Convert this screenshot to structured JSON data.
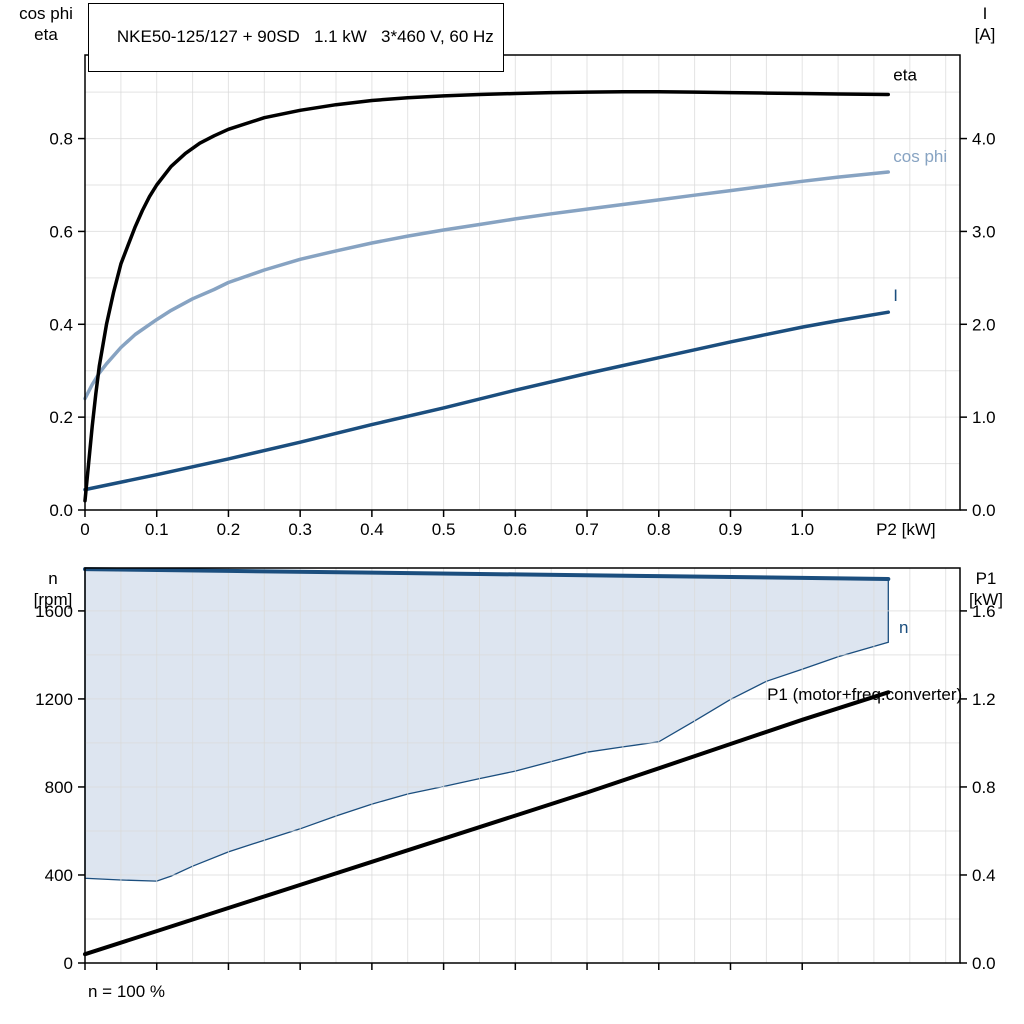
{
  "header": {
    "title": "NKE50-125/127 + 90SD   1.1 kW   3*460 V, 60 Hz"
  },
  "footer": {
    "note": "n = 100 %"
  },
  "colors": {
    "eta": "#000000",
    "cos_phi": "#87a3c2",
    "current": "#1b4e7e",
    "speed": "#1b4e7e",
    "p1": "#000000",
    "area_fill": "#d9e2ee",
    "grid": "#d9d9d9",
    "frame": "#000000",
    "text": "#000000"
  },
  "chart_data": [
    {
      "type": "line",
      "title": "Motor efficiency, power factor and current vs shaft power",
      "x_axis": {
        "min": 0,
        "max": 1.22,
        "minor_step": 0.05,
        "major_ticks": [
          0,
          0.1,
          0.2,
          0.3,
          0.4,
          0.5,
          0.6,
          0.7,
          0.8,
          0.9,
          1.0
        ],
        "tick_labels": [
          "0",
          "0.1",
          "0.2",
          "0.3",
          "0.4",
          "0.5",
          "0.6",
          "0.7",
          "0.8",
          "0.9",
          "1.0"
        ],
        "show_tick_labels": true,
        "end_label": "P2 [kW]",
        "end_label_x": 1.103
      },
      "left_axis": {
        "title_lines": [
          "cos phi",
          "eta"
        ],
        "min": 0,
        "max": 0.98,
        "minor_step": 0.1,
        "major_ticks": [
          0,
          0.2,
          0.4,
          0.6,
          0.8
        ],
        "tick_labels": [
          "0.0",
          "0.2",
          "0.4",
          "0.6",
          "0.8"
        ]
      },
      "right_axis": {
        "title_lines": [
          "I",
          "[A]"
        ],
        "min": 0,
        "max": 4.9,
        "major_ticks": [
          0,
          1,
          2,
          3,
          4
        ],
        "tick_labels": [
          "0.0",
          "1.0",
          "2.0",
          "3.0",
          "4.0"
        ]
      },
      "series": [
        {
          "name": "cos phi",
          "axis": "left",
          "color_key": "cos_phi",
          "width": 3.5,
          "points": [
            [
              0,
              0.24
            ],
            [
              0.01,
              0.27
            ],
            [
              0.02,
              0.295
            ],
            [
              0.03,
              0.315
            ],
            [
              0.05,
              0.35
            ],
            [
              0.07,
              0.378
            ],
            [
              0.1,
              0.41
            ],
            [
              0.12,
              0.43
            ],
            [
              0.15,
              0.455
            ],
            [
              0.18,
              0.475
            ],
            [
              0.2,
              0.49
            ],
            [
              0.25,
              0.517
            ],
            [
              0.3,
              0.54
            ],
            [
              0.35,
              0.558
            ],
            [
              0.4,
              0.575
            ],
            [
              0.45,
              0.59
            ],
            [
              0.5,
              0.603
            ],
            [
              0.55,
              0.615
            ],
            [
              0.6,
              0.627
            ],
            [
              0.65,
              0.638
            ],
            [
              0.7,
              0.648
            ],
            [
              0.75,
              0.658
            ],
            [
              0.8,
              0.668
            ],
            [
              0.85,
              0.678
            ],
            [
              0.9,
              0.688
            ],
            [
              0.95,
              0.698
            ],
            [
              1.0,
              0.708
            ],
            [
              1.05,
              0.717
            ],
            [
              1.12,
              0.728
            ]
          ]
        },
        {
          "name": "I",
          "axis": "right",
          "color_key": "current",
          "width": 3.5,
          "points": [
            [
              0,
              0.22
            ],
            [
              0.1,
              0.38
            ],
            [
              0.2,
              0.55
            ],
            [
              0.3,
              0.73
            ],
            [
              0.4,
              0.92
            ],
            [
              0.5,
              1.1
            ],
            [
              0.6,
              1.29
            ],
            [
              0.7,
              1.47
            ],
            [
              0.8,
              1.64
            ],
            [
              0.9,
              1.81
            ],
            [
              1.0,
              1.97
            ],
            [
              1.05,
              2.04
            ],
            [
              1.12,
              2.13
            ]
          ]
        },
        {
          "name": "eta",
          "axis": "left",
          "color_key": "eta",
          "width": 3.5,
          "points": [
            [
              0,
              0.02
            ],
            [
              0.005,
              0.1
            ],
            [
              0.01,
              0.18
            ],
            [
              0.015,
              0.25
            ],
            [
              0.02,
              0.31
            ],
            [
              0.03,
              0.4
            ],
            [
              0.04,
              0.47
            ],
            [
              0.05,
              0.53
            ],
            [
              0.06,
              0.57
            ],
            [
              0.07,
              0.61
            ],
            [
              0.08,
              0.645
            ],
            [
              0.09,
              0.675
            ],
            [
              0.1,
              0.7
            ],
            [
              0.12,
              0.74
            ],
            [
              0.14,
              0.768
            ],
            [
              0.16,
              0.79
            ],
            [
              0.18,
              0.806
            ],
            [
              0.2,
              0.82
            ],
            [
              0.25,
              0.845
            ],
            [
              0.3,
              0.861
            ],
            [
              0.35,
              0.873
            ],
            [
              0.4,
              0.882
            ],
            [
              0.45,
              0.888
            ],
            [
              0.5,
              0.892
            ],
            [
              0.55,
              0.895
            ],
            [
              0.6,
              0.897
            ],
            [
              0.65,
              0.899
            ],
            [
              0.7,
              0.9
            ],
            [
              0.75,
              0.901
            ],
            [
              0.8,
              0.901
            ],
            [
              0.85,
              0.9
            ],
            [
              0.9,
              0.899
            ],
            [
              0.95,
              0.898
            ],
            [
              1.0,
              0.897
            ],
            [
              1.05,
              0.896
            ],
            [
              1.12,
              0.895
            ]
          ]
        }
      ],
      "annotations": [
        {
          "text": "eta",
          "x": 1.127,
          "y": 0.925,
          "axis": "left",
          "color_key": "eta",
          "anchor": "start"
        },
        {
          "text": "cos phi",
          "x": 1.127,
          "y": 0.75,
          "axis": "left",
          "color_key": "cos_phi",
          "anchor": "start"
        },
        {
          "text": "I",
          "x": 1.127,
          "y": 0.45,
          "axis": "left",
          "color_key": "current",
          "anchor": "start"
        }
      ]
    },
    {
      "type": "line",
      "title": "Speed range and input power vs shaft power",
      "x_axis": {
        "min": 0,
        "max": 1.22,
        "minor_step": 0.05,
        "major_ticks": [
          0,
          0.1,
          0.2,
          0.3,
          0.4,
          0.5,
          0.6,
          0.7,
          0.8,
          0.9,
          1.0
        ],
        "tick_labels": [
          "",
          "",
          "",
          "",
          "",
          "",
          "",
          "",
          "",
          "",
          ""
        ],
        "show_tick_labels": false
      },
      "left_axis": {
        "title_lines": [
          "n",
          "[rpm]"
        ],
        "min": 0,
        "max": 1795,
        "minor_step": 200,
        "major_ticks": [
          0,
          400,
          800,
          1200,
          1600
        ],
        "tick_labels": [
          "0",
          "400",
          "800",
          "1200",
          "1600"
        ]
      },
      "right_axis": {
        "title_lines": [
          "P1",
          "[kW]"
        ],
        "min": 0,
        "max": 1.795,
        "major_ticks": [
          0,
          0.4,
          0.8,
          1.2,
          1.6
        ],
        "tick_labels": [
          "0.0",
          "0.4",
          "0.8",
          "1.2",
          "1.6"
        ]
      },
      "area": {
        "name": "speed-control-range",
        "fill_key": "area_fill",
        "stroke_key": "speed",
        "upper": [
          [
            0,
            1790
          ],
          [
            0.2,
            1782
          ],
          [
            0.4,
            1774
          ],
          [
            0.6,
            1766
          ],
          [
            0.8,
            1758
          ],
          [
            1.0,
            1750
          ],
          [
            1.12,
            1745
          ]
        ],
        "lower": [
          [
            0,
            385
          ],
          [
            0.05,
            377
          ],
          [
            0.1,
            372
          ],
          [
            0.12,
            395
          ],
          [
            0.15,
            440
          ],
          [
            0.2,
            505
          ],
          [
            0.25,
            558
          ],
          [
            0.3,
            610
          ],
          [
            0.35,
            668
          ],
          [
            0.4,
            722
          ],
          [
            0.45,
            768
          ],
          [
            0.5,
            802
          ],
          [
            0.55,
            838
          ],
          [
            0.6,
            872
          ],
          [
            0.65,
            915
          ],
          [
            0.7,
            958
          ],
          [
            0.75,
            982
          ],
          [
            0.8,
            1005
          ],
          [
            0.85,
            1100
          ],
          [
            0.9,
            1198
          ],
          [
            0.95,
            1280
          ],
          [
            1.0,
            1335
          ],
          [
            1.05,
            1392
          ],
          [
            1.12,
            1458
          ]
        ]
      },
      "series": [
        {
          "name": "n",
          "axis": "left",
          "color_key": "speed",
          "width": 4,
          "points": [
            [
              0,
              1790
            ],
            [
              0.2,
              1782
            ],
            [
              0.4,
              1774
            ],
            [
              0.6,
              1766
            ],
            [
              0.8,
              1758
            ],
            [
              1.0,
              1750
            ],
            [
              1.12,
              1745
            ]
          ]
        },
        {
          "name": "P1",
          "axis": "right",
          "color_key": "p1",
          "width": 4,
          "points": [
            [
              0,
              0.04
            ],
            [
              0.1,
              0.145
            ],
            [
              0.2,
              0.25
            ],
            [
              0.3,
              0.355
            ],
            [
              0.4,
              0.46
            ],
            [
              0.5,
              0.565
            ],
            [
              0.6,
              0.67
            ],
            [
              0.7,
              0.775
            ],
            [
              0.8,
              0.885
            ],
            [
              0.9,
              0.995
            ],
            [
              1.0,
              1.105
            ],
            [
              1.12,
              1.23
            ]
          ]
        }
      ],
      "annotations": [
        {
          "text": "n",
          "x": 1.135,
          "y": 1500,
          "axis": "left",
          "color_key": "speed",
          "anchor": "start"
        },
        {
          "text": "P1 (motor+freq.converter)",
          "x": 1.223,
          "y": 1195,
          "axis": "left",
          "color_key": "p1",
          "anchor": "end"
        }
      ]
    }
  ]
}
